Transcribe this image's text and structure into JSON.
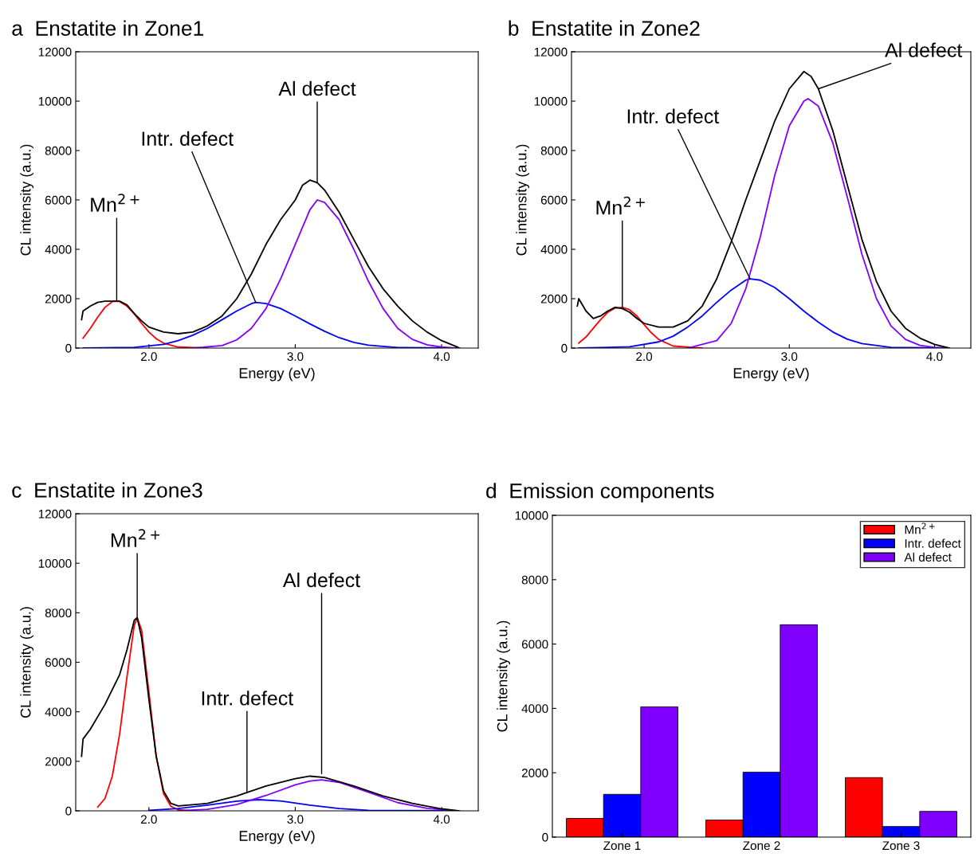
{
  "chart_data": [
    {
      "type": "line",
      "title": "a  Enstatite in Zone1",
      "xlabel": "Energy (eV)",
      "ylabel": "CL intensity (a.u.)",
      "xlim": [
        1.5,
        4.25
      ],
      "ylim": [
        0,
        12000
      ],
      "xticks": [
        {
          "value": 2,
          "label": "2.0"
        },
        {
          "value": 3,
          "label": "3.0"
        },
        {
          "value": 4,
          "label": "4.0"
        }
      ],
      "yticks": [
        0,
        2000,
        4000,
        6000,
        8000,
        10000,
        12000
      ],
      "grid": false,
      "legend": false,
      "annotations": [
        {
          "text": "Mn$^{2+}$",
          "x": 1.78,
          "y": 1900
        },
        {
          "text": "Intr. defect",
          "x": 2.73,
          "y": 1850
        },
        {
          "text": "Al defect",
          "x": 3.15,
          "y": 6700
        }
      ],
      "series": [
        {
          "color": "#ff0000",
          "x": [
            1.55,
            1.6,
            1.65,
            1.7,
            1.75,
            1.78,
            1.8,
            1.85,
            1.9,
            1.95,
            2.0,
            2.05,
            2.1,
            2.2,
            2.4
          ],
          "values": [
            400,
            800,
            1250,
            1650,
            1880,
            1900,
            1880,
            1700,
            1380,
            1000,
            650,
            380,
            200,
            40,
            0
          ]
        },
        {
          "color": "#0000ff",
          "x": [
            1.55,
            1.9,
            2.1,
            2.2,
            2.3,
            2.4,
            2.5,
            2.6,
            2.7,
            2.73,
            2.8,
            2.9,
            3.0,
            3.1,
            3.2,
            3.3,
            3.4,
            3.5,
            3.7,
            4.1
          ],
          "values": [
            0,
            30,
            150,
            300,
            520,
            800,
            1150,
            1500,
            1800,
            1850,
            1800,
            1600,
            1300,
            980,
            680,
            420,
            230,
            120,
            20,
            0
          ]
        },
        {
          "color": "#8000ff",
          "x": [
            2.3,
            2.5,
            2.6,
            2.7,
            2.8,
            2.9,
            3.0,
            3.1,
            3.15,
            3.2,
            3.3,
            3.4,
            3.5,
            3.6,
            3.7,
            3.8,
            3.9,
            4.0,
            4.1
          ],
          "values": [
            0,
            100,
            330,
            800,
            1600,
            2800,
            4200,
            5600,
            6000,
            5900,
            5200,
            4000,
            2700,
            1600,
            800,
            350,
            130,
            40,
            0
          ]
        },
        {
          "color": "#000000",
          "x": [
            1.54,
            1.55,
            1.6,
            1.65,
            1.7,
            1.75,
            1.8,
            1.85,
            1.9,
            1.95,
            2.0,
            2.1,
            2.2,
            2.3,
            2.4,
            2.5,
            2.6,
            2.7,
            2.8,
            2.9,
            3.0,
            3.05,
            3.1,
            3.15,
            3.2,
            3.3,
            3.4,
            3.5,
            3.6,
            3.7,
            3.8,
            3.9,
            4.0,
            4.1,
            4.12
          ],
          "values": [
            1150,
            1500,
            1700,
            1850,
            1900,
            1900,
            1900,
            1750,
            1400,
            1100,
            850,
            650,
            580,
            650,
            900,
            1300,
            2000,
            3000,
            4200,
            5200,
            6000,
            6600,
            6800,
            6700,
            6400,
            5500,
            4400,
            3300,
            2400,
            1700,
            1100,
            650,
            300,
            60,
            0
          ]
        }
      ]
    },
    {
      "type": "line",
      "title": "b  Enstatite in Zone2",
      "xlabel": "Energy (eV)",
      "ylabel": "CL intensity (a.u.)",
      "xlim": [
        1.5,
        4.25
      ],
      "ylim": [
        0,
        12000
      ],
      "xticks": [
        {
          "value": 2,
          "label": "2.0"
        },
        {
          "value": 3,
          "label": "3.0"
        },
        {
          "value": 4,
          "label": "4.0"
        }
      ],
      "yticks": [
        0,
        2000,
        4000,
        6000,
        8000,
        10000,
        12000
      ],
      "grid": false,
      "legend": false,
      "annotations": [
        {
          "text": "Mn$^{2+}$",
          "x": 1.85,
          "y": 1650
        },
        {
          "text": "Intr. defect",
          "x": 2.73,
          "y": 2800
        },
        {
          "text": "Al defect",
          "x": 3.2,
          "y": 10500
        }
      ],
      "series": [
        {
          "color": "#ff0000",
          "x": [
            1.55,
            1.6,
            1.65,
            1.7,
            1.75,
            1.8,
            1.85,
            1.9,
            1.95,
            2.0,
            2.05,
            2.1,
            2.2,
            2.4
          ],
          "values": [
            200,
            450,
            800,
            1150,
            1450,
            1620,
            1650,
            1550,
            1300,
            950,
            620,
            350,
            80,
            0
          ]
        },
        {
          "color": "#0000ff",
          "x": [
            1.55,
            1.9,
            2.1,
            2.2,
            2.3,
            2.4,
            2.5,
            2.6,
            2.7,
            2.73,
            2.8,
            2.9,
            3.0,
            3.1,
            3.2,
            3.3,
            3.4,
            3.5,
            3.7,
            4.1
          ],
          "values": [
            0,
            50,
            250,
            480,
            850,
            1300,
            1850,
            2350,
            2750,
            2800,
            2750,
            2450,
            2000,
            1500,
            1050,
            650,
            360,
            180,
            30,
            0
          ]
        },
        {
          "color": "#8000ff",
          "x": [
            2.3,
            2.5,
            2.6,
            2.7,
            2.8,
            2.9,
            3.0,
            3.1,
            3.13,
            3.2,
            3.3,
            3.4,
            3.5,
            3.6,
            3.7,
            3.8,
            3.9,
            4.0,
            4.1
          ],
          "values": [
            0,
            300,
            1000,
            2400,
            4500,
            7000,
            9000,
            10000,
            10100,
            9800,
            8300,
            6100,
            3800,
            2000,
            900,
            350,
            110,
            30,
            0
          ]
        },
        {
          "color": "#000000",
          "x": [
            1.54,
            1.55,
            1.6,
            1.65,
            1.7,
            1.75,
            1.8,
            1.85,
            1.9,
            1.95,
            2.0,
            2.1,
            2.2,
            2.3,
            2.4,
            2.5,
            2.6,
            2.7,
            2.8,
            2.9,
            3.0,
            3.1,
            3.15,
            3.2,
            3.3,
            3.4,
            3.5,
            3.6,
            3.7,
            3.8,
            3.9,
            4.0,
            4.1
          ],
          "values": [
            1700,
            2000,
            1500,
            1200,
            1300,
            1500,
            1650,
            1600,
            1450,
            1200,
            1000,
            850,
            850,
            1100,
            1700,
            2800,
            4300,
            6000,
            7600,
            9200,
            10500,
            11200,
            11000,
            10500,
            8800,
            6600,
            4400,
            2700,
            1500,
            800,
            400,
            150,
            0
          ]
        }
      ]
    },
    {
      "type": "line",
      "title": "c  Enstatite in Zone3",
      "xlabel": "Energy (eV)",
      "ylabel": "CL intensity (a.u.)",
      "xlim": [
        1.5,
        4.25
      ],
      "ylim": [
        0,
        12000
      ],
      "xticks": [
        {
          "value": 2,
          "label": "2.0"
        },
        {
          "value": 3,
          "label": "3.0"
        },
        {
          "value": 4,
          "label": "4.0"
        }
      ],
      "yticks": [
        0,
        2000,
        4000,
        6000,
        8000,
        10000,
        12000
      ],
      "grid": false,
      "legend": false,
      "annotations": [
        {
          "text": "Mn$^{2+}$",
          "x": 1.92,
          "y": 7800
        },
        {
          "text": "Intr. defect",
          "x": 2.67,
          "y": 750
        },
        {
          "text": "Al defect",
          "x": 3.18,
          "y": 1500
        }
      ],
      "series": [
        {
          "color": "#ff0000",
          "x": [
            1.65,
            1.7,
            1.75,
            1.8,
            1.85,
            1.9,
            1.92,
            1.95,
            2.0,
            2.05,
            2.1,
            2.15,
            2.2,
            2.3
          ],
          "values": [
            150,
            500,
            1400,
            3100,
            5400,
            7500,
            7800,
            7300,
            4800,
            2200,
            700,
            180,
            40,
            0
          ]
        },
        {
          "color": "#0000ff",
          "x": [
            2.0,
            2.2,
            2.4,
            2.6,
            2.75,
            2.9,
            3.1,
            3.3,
            3.5,
            4.1
          ],
          "values": [
            20,
            90,
            230,
            390,
            450,
            400,
            230,
            90,
            20,
            0
          ]
        },
        {
          "color": "#8000ff",
          "x": [
            2.2,
            2.4,
            2.6,
            2.8,
            3.0,
            3.1,
            3.18,
            3.3,
            3.5,
            3.7,
            3.9,
            4.1
          ],
          "values": [
            0,
            60,
            250,
            620,
            1050,
            1200,
            1250,
            1150,
            750,
            330,
            100,
            0
          ]
        },
        {
          "color": "#000000",
          "x": [
            1.54,
            1.55,
            1.6,
            1.7,
            1.8,
            1.85,
            1.9,
            1.92,
            1.95,
            2.0,
            2.05,
            2.1,
            2.15,
            2.2,
            2.4,
            2.6,
            2.8,
            3.0,
            3.1,
            3.2,
            3.4,
            3.6,
            3.8,
            4.0,
            4.12
          ],
          "values": [
            2200,
            2900,
            3300,
            4300,
            5500,
            6500,
            7700,
            7800,
            7000,
            4500,
            2200,
            800,
            300,
            200,
            300,
            600,
            1000,
            1300,
            1400,
            1350,
            1000,
            600,
            300,
            80,
            0
          ]
        }
      ]
    },
    {
      "type": "bar",
      "title": "d  Emission components",
      "ylabel": "CL intensity (a.u.)",
      "categories": [
        "Zone 1",
        "Zone 2",
        "Zone 3"
      ],
      "ylim": [
        0,
        10000
      ],
      "yticks": [
        0,
        2000,
        4000,
        6000,
        8000,
        10000
      ],
      "grid": false,
      "legend": "top right",
      "series": [
        {
          "name": "Mn$^{2+}$",
          "color": "#ff0000",
          "values": [
            580,
            530,
            1850
          ]
        },
        {
          "name": "Intr. defect",
          "color": "#0000ff",
          "values": [
            1330,
            2020,
            330
          ]
        },
        {
          "name": "Al defect",
          "color": "#8000ff",
          "values": [
            4050,
            6600,
            800
          ]
        }
      ]
    }
  ]
}
